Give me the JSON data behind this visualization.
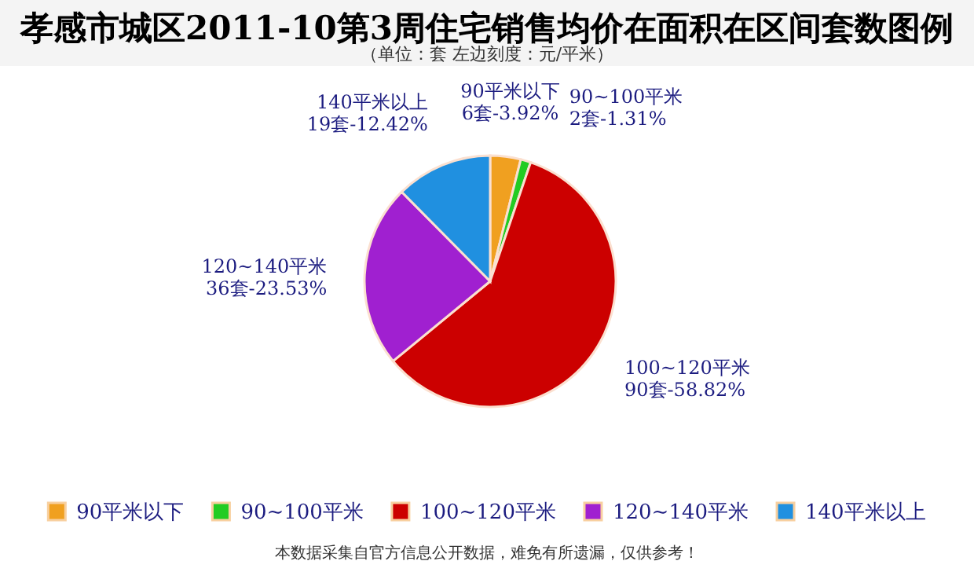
{
  "chart_data": {
    "type": "pie",
    "title": "孝感市城区2011-10第3周住宅销售均价在面积在区间套数图例",
    "subtitle": "（单位：套 左边刻度：元/平米）",
    "categories": [
      "90平米以下",
      "90~100平米",
      "100~120平米",
      "120~140平米",
      "140平米以上"
    ],
    "values": [
      6,
      2,
      90,
      36,
      19
    ],
    "value_labels": [
      "6套-3.92%",
      "2套-1.31%",
      "90套-58.82%",
      "36套-23.53%",
      "19套-12.42%"
    ],
    "colors": [
      "#f0a020",
      "#22cc22",
      "#cc0000",
      "#a020d0",
      "#2090e0"
    ],
    "legend": "bottom",
    "annotations": [
      "本数据采集自官方信息公开数据，难免有所遗漏，仅供参考！"
    ]
  }
}
